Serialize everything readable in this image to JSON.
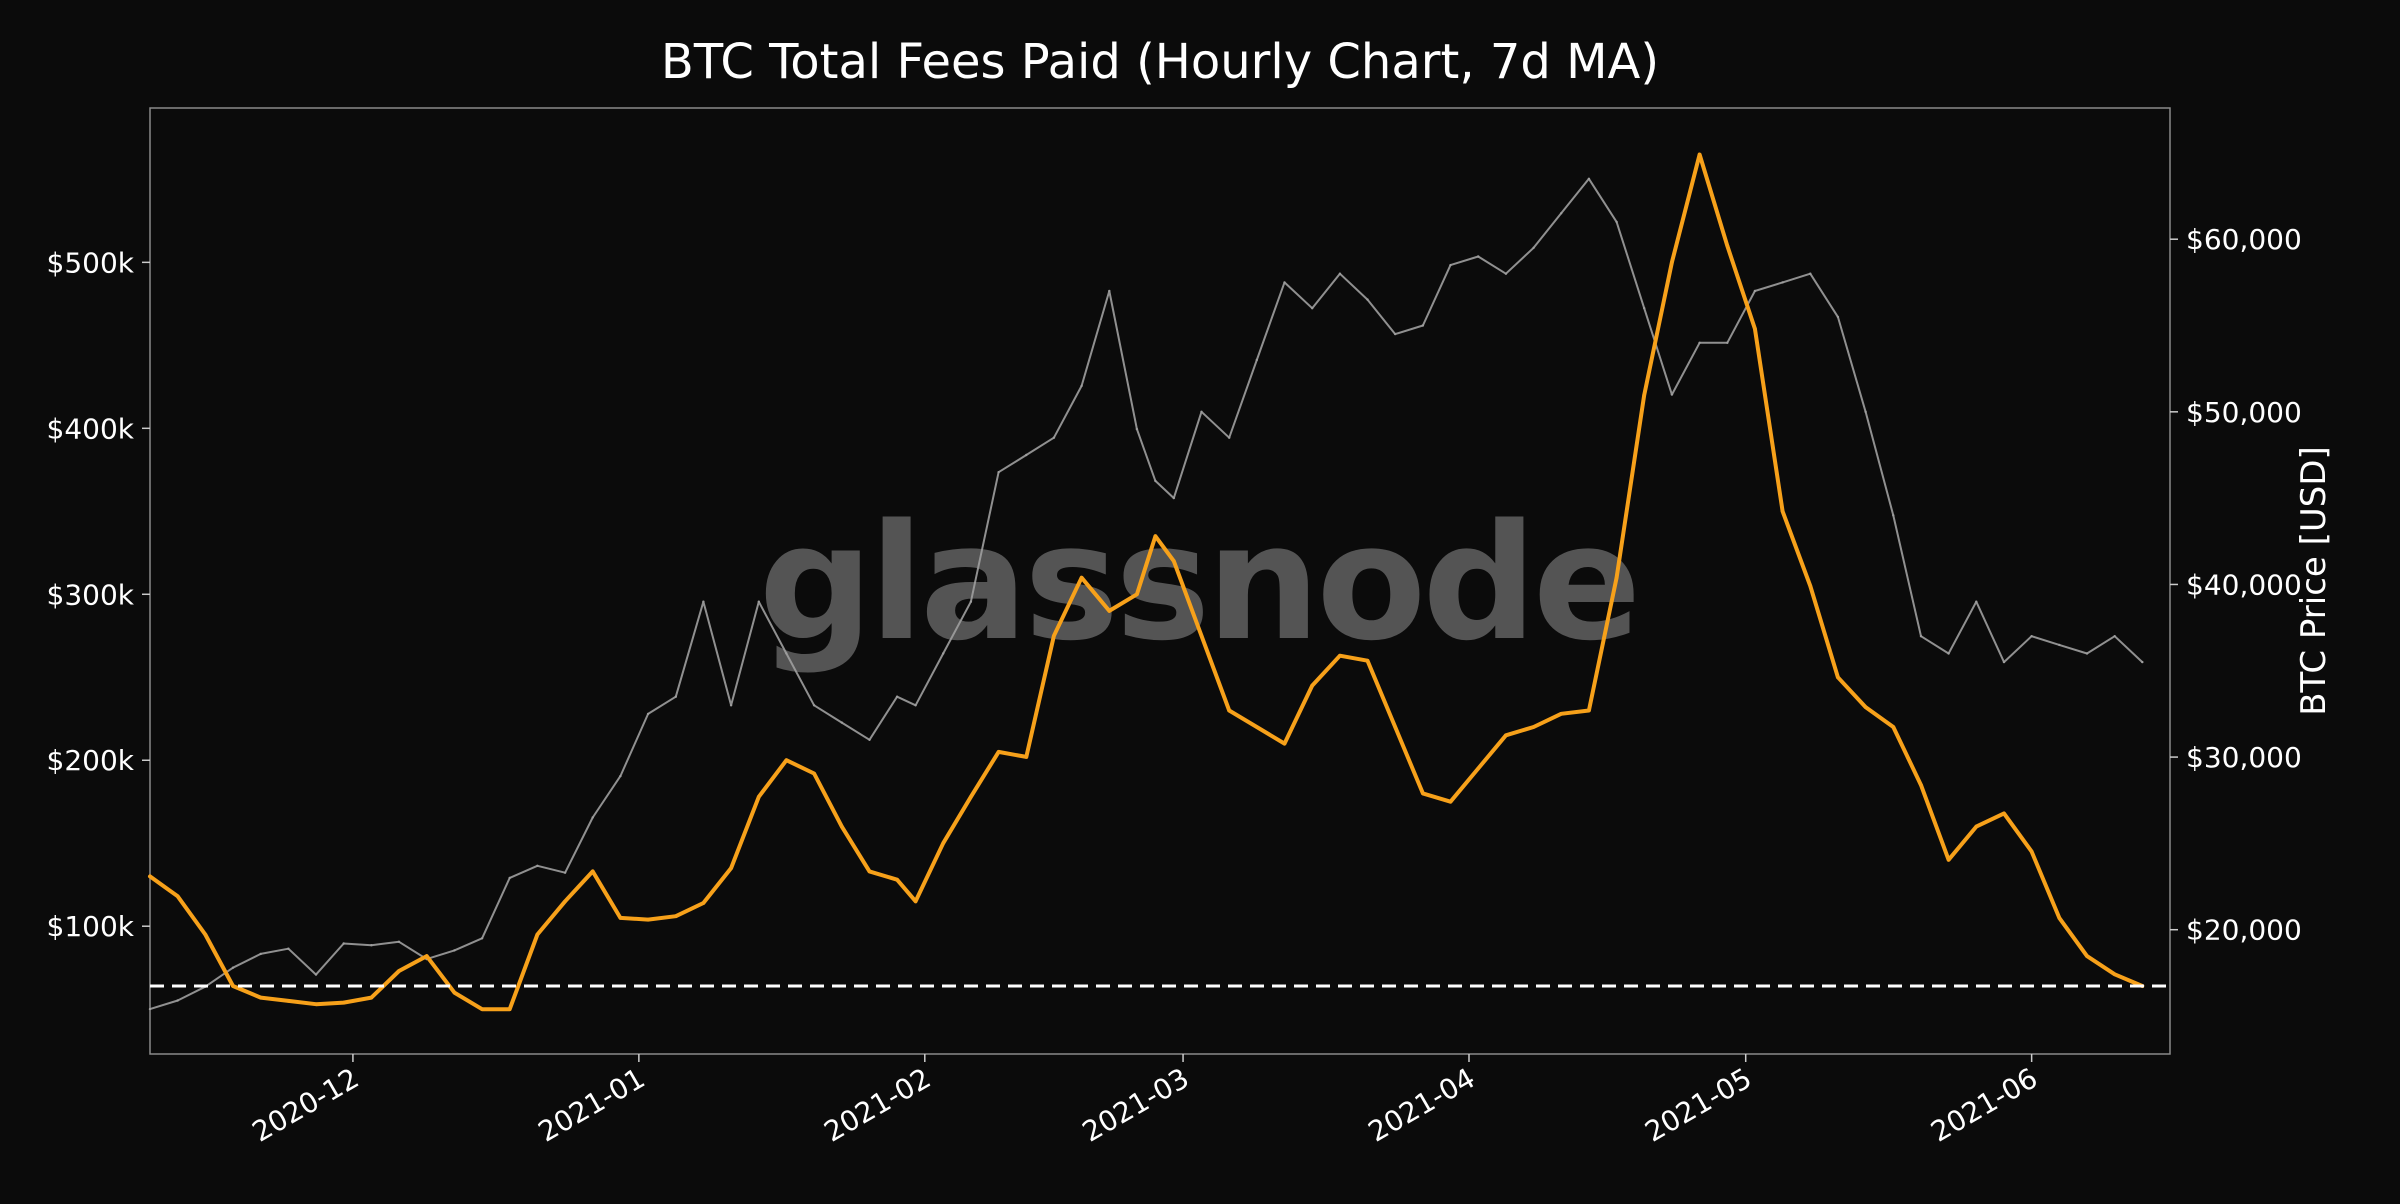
{
  "chart_data": {
    "type": "line",
    "title": "BTC Total Fees Paid (Hourly Chart, 7d MA)",
    "watermark": "glassnode",
    "y_left": {
      "label": "",
      "ticks": [
        100000,
        200000,
        300000,
        400000,
        500000
      ],
      "tick_labels": [
        "$100k",
        "$200k",
        "$300k",
        "$400k",
        "$500k"
      ],
      "range": [
        23000,
        593000
      ]
    },
    "y_right": {
      "label": "BTC Price [USD]",
      "ticks": [
        20000,
        30000,
        40000,
        50000,
        60000
      ],
      "tick_labels": [
        "$20,000",
        "$30,000",
        "$40,000",
        "$50,000",
        "$60,000"
      ],
      "range": [
        12800,
        67600
      ]
    },
    "x_axis": {
      "range": [
        "2020-11-09",
        "2021-06-16"
      ],
      "ticks": [
        "2020-12-01",
        "2021-01-01",
        "2021-02-01",
        "2021-03-01",
        "2021-04-01",
        "2021-05-01",
        "2021-06-01"
      ],
      "tick_labels": [
        "2020-12",
        "2021-01",
        "2021-02",
        "2021-03",
        "2021-04",
        "2021-05",
        "2021-06"
      ]
    },
    "grid": false,
    "reference_line": {
      "axis": "left",
      "value": 64000,
      "style": "dashed",
      "color": "#ffffff"
    },
    "series": [
      {
        "axis": "left",
        "color": "#f7a11a",
        "x": [
          "2020-11-09",
          "2020-11-12",
          "2020-11-15",
          "2020-11-18",
          "2020-11-21",
          "2020-11-24",
          "2020-11-27",
          "2020-11-30",
          "2020-12-03",
          "2020-12-06",
          "2020-12-09",
          "2020-12-12",
          "2020-12-15",
          "2020-12-18",
          "2020-12-21",
          "2020-12-24",
          "2020-12-27",
          "2020-12-30",
          "2021-01-02",
          "2021-01-05",
          "2021-01-08",
          "2021-01-11",
          "2021-01-14",
          "2021-01-17",
          "2021-01-20",
          "2021-01-23",
          "2021-01-26",
          "2021-01-29",
          "2021-01-31",
          "2021-02-03",
          "2021-02-06",
          "2021-02-09",
          "2021-02-12",
          "2021-02-15",
          "2021-02-18",
          "2021-02-21",
          "2021-02-24",
          "2021-02-26",
          "2021-02-28",
          "2021-03-03",
          "2021-03-06",
          "2021-03-09",
          "2021-03-12",
          "2021-03-15",
          "2021-03-18",
          "2021-03-21",
          "2021-03-24",
          "2021-03-27",
          "2021-03-30",
          "2021-04-02",
          "2021-04-05",
          "2021-04-08",
          "2021-04-11",
          "2021-04-14",
          "2021-04-17",
          "2021-04-20",
          "2021-04-23",
          "2021-04-26",
          "2021-04-29",
          "2021-05-02",
          "2021-05-05",
          "2021-05-08",
          "2021-05-11",
          "2021-05-14",
          "2021-05-17",
          "2021-05-20",
          "2021-05-23",
          "2021-05-26",
          "2021-05-29",
          "2021-06-01",
          "2021-06-04",
          "2021-06-07",
          "2021-06-10",
          "2021-06-13"
        ],
        "values": [
          130000,
          118000,
          95000,
          64000,
          57000,
          55000,
          53000,
          54000,
          57000,
          73000,
          82000,
          60000,
          50000,
          50000,
          95000,
          115000,
          133000,
          105000,
          104000,
          106000,
          114000,
          135000,
          178000,
          200000,
          192000,
          160000,
          133000,
          128000,
          115000,
          150000,
          178000,
          205000,
          202000,
          275000,
          310000,
          290000,
          300000,
          335000,
          320000,
          275000,
          230000,
          220000,
          210000,
          245000,
          263000,
          260000,
          220000,
          180000,
          175000,
          195000,
          215000,
          220000,
          228000,
          230000,
          310000,
          420000,
          500000,
          565000,
          510000,
          460000,
          350000,
          305000,
          250000,
          232000,
          220000,
          185000,
          140000,
          160000,
          168000,
          145000,
          105000,
          82000,
          71000,
          64000
        ]
      },
      {
        "axis": "right",
        "color": "#9e9e9e",
        "x": [
          "2020-11-09",
          "2020-11-12",
          "2020-11-15",
          "2020-11-18",
          "2020-11-21",
          "2020-11-24",
          "2020-11-27",
          "2020-11-30",
          "2020-12-03",
          "2020-12-06",
          "2020-12-09",
          "2020-12-12",
          "2020-12-15",
          "2020-12-18",
          "2020-12-21",
          "2020-12-24",
          "2020-12-27",
          "2020-12-30",
          "2021-01-02",
          "2021-01-05",
          "2021-01-08",
          "2021-01-11",
          "2021-01-14",
          "2021-01-17",
          "2021-01-20",
          "2021-01-23",
          "2021-01-26",
          "2021-01-29",
          "2021-01-31",
          "2021-02-03",
          "2021-02-06",
          "2021-02-09",
          "2021-02-12",
          "2021-02-15",
          "2021-02-18",
          "2021-02-21",
          "2021-02-24",
          "2021-02-26",
          "2021-02-28",
          "2021-03-03",
          "2021-03-06",
          "2021-03-09",
          "2021-03-12",
          "2021-03-15",
          "2021-03-18",
          "2021-03-21",
          "2021-03-24",
          "2021-03-27",
          "2021-03-30",
          "2021-04-02",
          "2021-04-05",
          "2021-04-08",
          "2021-04-11",
          "2021-04-14",
          "2021-04-17",
          "2021-04-20",
          "2021-04-23",
          "2021-04-26",
          "2021-04-29",
          "2021-05-02",
          "2021-05-05",
          "2021-05-08",
          "2021-05-11",
          "2021-05-14",
          "2021-05-17",
          "2021-05-20",
          "2021-05-23",
          "2021-05-26",
          "2021-05-29",
          "2021-06-01",
          "2021-06-04",
          "2021-06-07",
          "2021-06-10",
          "2021-06-13"
        ],
        "values": [
          15400,
          15900,
          16700,
          17800,
          18600,
          18900,
          17400,
          19200,
          19100,
          19300,
          18300,
          18800,
          19500,
          23000,
          23700,
          23300,
          26500,
          28900,
          32500,
          33500,
          39000,
          33000,
          39000,
          36000,
          33000,
          32000,
          31000,
          33500,
          33000,
          36000,
          39000,
          46500,
          47500,
          48500,
          51500,
          57000,
          49000,
          46000,
          45000,
          50000,
          48500,
          53000,
          57500,
          56000,
          58000,
          56500,
          54500,
          55000,
          58500,
          59000,
          58000,
          59500,
          61500,
          63500,
          61000,
          56000,
          51000,
          54000,
          54000,
          57000,
          57500,
          58000,
          55500,
          50000,
          44000,
          37000,
          36000,
          39000,
          35500,
          37000,
          36500,
          36000,
          37000,
          35500
        ]
      }
    ]
  }
}
